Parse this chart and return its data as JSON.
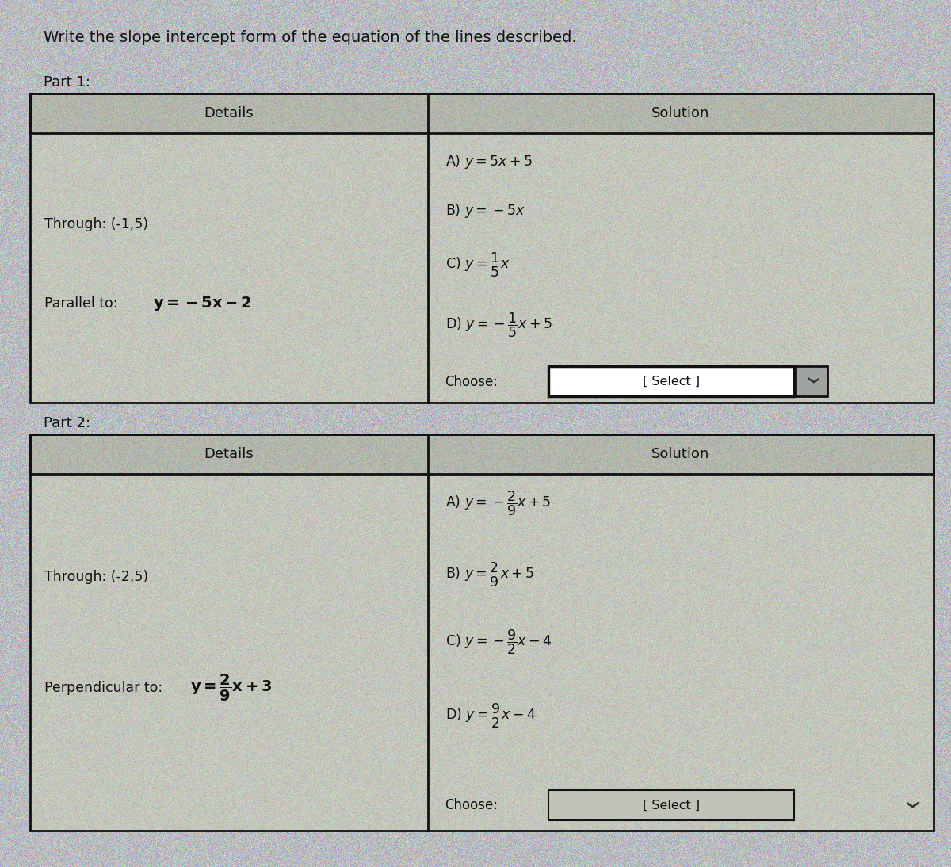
{
  "title": "Write the slope intercept form of the equation of the lines described.",
  "bg_color": "#b8bcc0",
  "outer_bg": "#a8acb0",
  "table_bg": "#c0c4b8",
  "header_bg": "#b0b4a8",
  "cell_bg": "#bbbfb4",
  "border_color": "#222222",
  "text_color": "#111111",
  "part1": {
    "label": "Part 1:",
    "details_header": "Details",
    "solution_header": "Solution",
    "through": "Through: (-1,5)",
    "parallel_prefix": "Parallel to: ",
    "parallel_eq": "$\\mathbf{y=-5x-2}$",
    "sol_A": "A) $y=5x+5$",
    "sol_B": "B) $y=-5x$",
    "sol_C": "C) $y=\\dfrac{1}{5}x$",
    "sol_D": "D) $y=-\\dfrac{1}{5}x+5$",
    "choose": "Choose:",
    "select": "[ Select ]"
  },
  "part2": {
    "label": "Part 2:",
    "details_header": "Details",
    "solution_header": "Solution",
    "through": "Through: (-2,5)",
    "perp_prefix": "Perpendicular to: ",
    "perp_eq": "$\\mathbf{y=\\dfrac{2}{9}x+3}$",
    "sol_A": "A) $y=-\\dfrac{2}{9}x+5$",
    "sol_B": "B) $y=\\dfrac{2}{9}x+5$",
    "sol_C": "C) $y=-\\dfrac{9}{2}x-4$",
    "sol_D": "D) $y=\\dfrac{9}{2}x-4$",
    "choose": "Choose:",
    "select": "[ Select ]"
  }
}
